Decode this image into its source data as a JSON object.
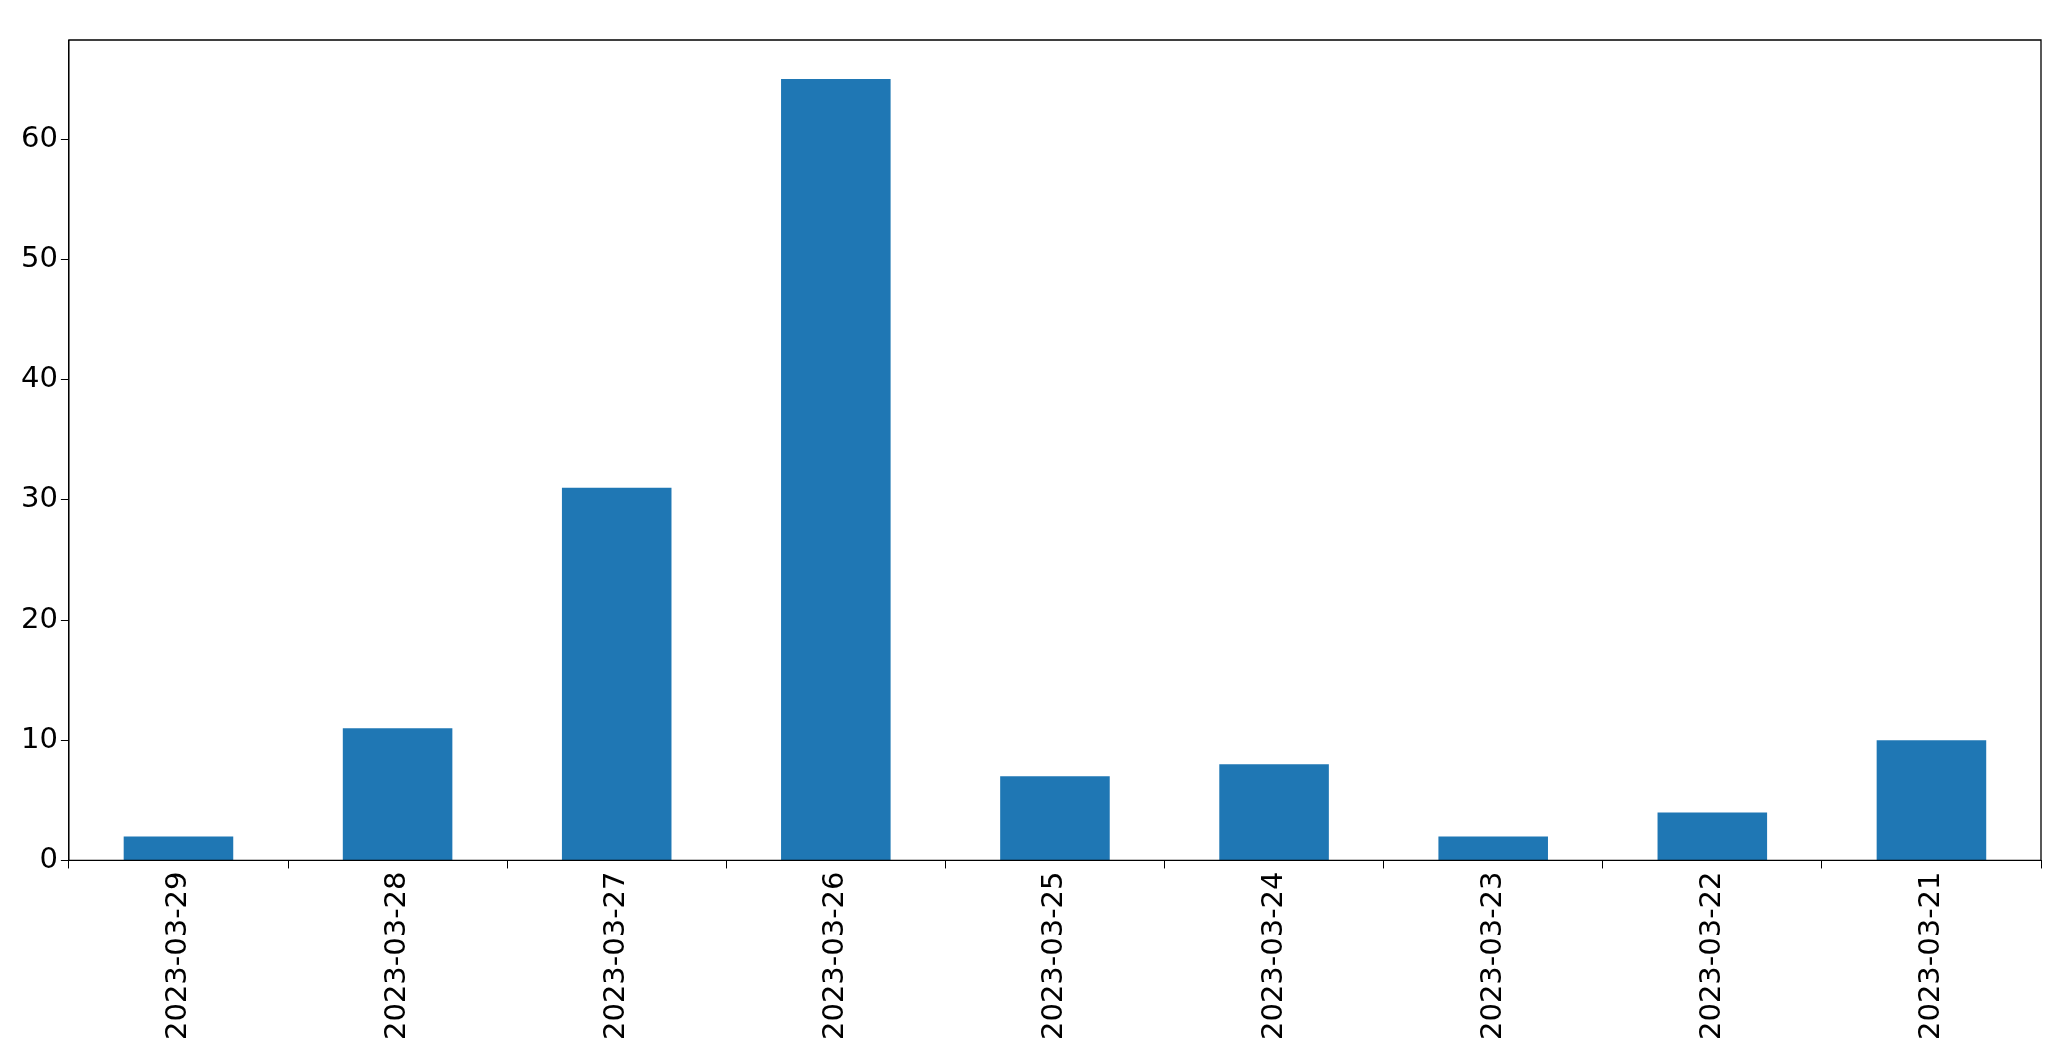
{
  "chart_data": {
    "type": "bar",
    "categories": [
      "2023-03-29",
      "2023-03-28",
      "2023-03-27",
      "2023-03-26",
      "2023-03-25",
      "2023-03-24",
      "2023-03-23",
      "2023-03-22",
      "2023-03-21"
    ],
    "values": [
      2,
      11,
      31,
      65,
      7,
      8,
      2,
      4,
      10
    ],
    "color": "#1f77b4",
    "ylim": [
      0,
      68.25
    ],
    "yticks": [
      0,
      10,
      20,
      30,
      40,
      50,
      60
    ],
    "legend": false
  }
}
